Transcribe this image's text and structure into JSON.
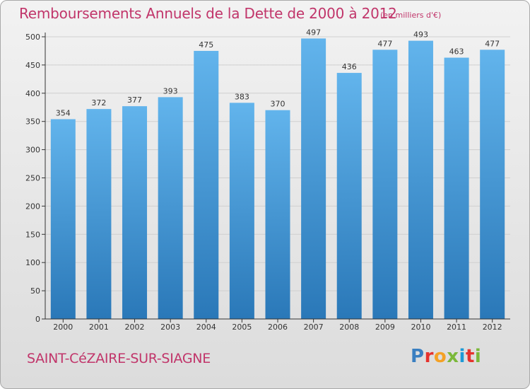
{
  "header": {
    "title": "Remboursements Annuels de la Dette de 2000 à 2012",
    "units": "(en milliers d'€)"
  },
  "footer": {
    "city": "SAINT-CéZAIRE-SUR-SIAGNE",
    "logo_text": "Proxiti",
    "logo_colors": [
      "#3a7fc1",
      "#e5322d",
      "#f4a125",
      "#7bb83a",
      "#1e9ad6",
      "#e5322d",
      "#7bb83a"
    ]
  },
  "colors": {
    "accent": "#c1356a",
    "bar_top": "#62b4ec",
    "bar_bottom": "#2a78b8",
    "axis": "#333333",
    "grid": "#cfcfcf"
  },
  "chart_data": {
    "type": "bar",
    "categories": [
      "2000",
      "2001",
      "2002",
      "2003",
      "2004",
      "2005",
      "2006",
      "2007",
      "2008",
      "2009",
      "2010",
      "2011",
      "2012"
    ],
    "values": [
      354,
      372,
      377,
      393,
      475,
      383,
      370,
      497,
      436,
      477,
      493,
      463,
      477
    ],
    "value_labels": [
      "354",
      "372",
      "377",
      "393",
      "475",
      "383",
      "370",
      "497",
      "436",
      "477",
      "493",
      "463",
      "477"
    ],
    "y_ticks": [
      0,
      50,
      100,
      150,
      200,
      250,
      300,
      350,
      400,
      450,
      500
    ],
    "ylim": [
      0,
      500
    ],
    "grid": true,
    "title": "Remboursements Annuels de la Dette de 2000 à 2012",
    "xlabel": "",
    "ylabel": ""
  }
}
